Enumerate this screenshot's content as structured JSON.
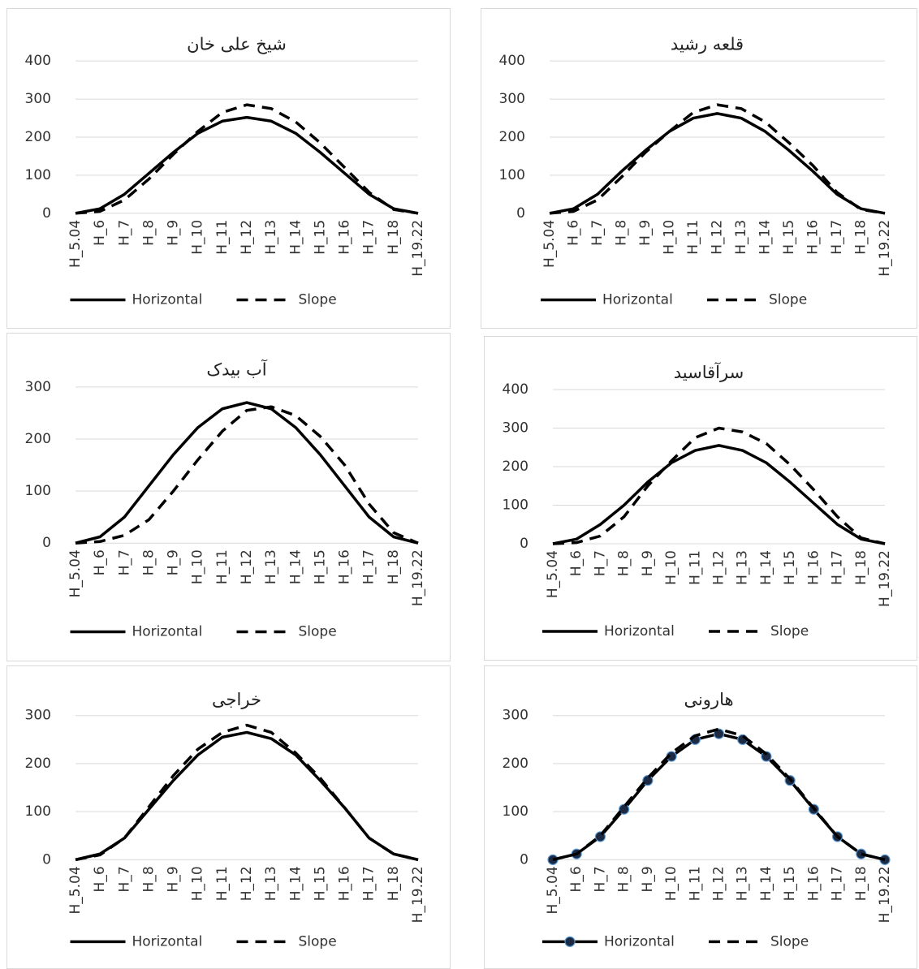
{
  "chart_data": [
    {
      "type": "line",
      "title": "شیخ علی خان",
      "categories": [
        "H_5.04",
        "H_6",
        "H_7",
        "H_8",
        "H_9",
        "H_10",
        "H_11",
        "H_12",
        "H_13",
        "H_14",
        "H_15",
        "H_16",
        "H_17",
        "H_18",
        "H_19.22"
      ],
      "series": [
        {
          "name": "Horizontal",
          "color": "#000000",
          "line_style": "solid",
          "values": [
            0,
            12,
            50,
            105,
            160,
            210,
            242,
            252,
            242,
            210,
            160,
            105,
            50,
            12,
            0
          ]
        },
        {
          "name": "Slope",
          "color": "#000000",
          "line_style": "dashed",
          "values": [
            0,
            5,
            35,
            90,
            155,
            215,
            265,
            285,
            275,
            240,
            185,
            120,
            55,
            10,
            0
          ]
        }
      ],
      "ylim": [
        0,
        400
      ],
      "yticks": [
        0,
        100,
        200,
        300,
        400
      ],
      "grid": true,
      "legend": "bottom"
    },
    {
      "type": "line",
      "title": "قلعه رشید",
      "categories": [
        "H_5.04",
        "H_6",
        "H_7",
        "H_8",
        "H_9",
        "H_10",
        "H_11",
        "H_12",
        "H_13",
        "H_14",
        "H_15",
        "H_16",
        "H_17",
        "H_18",
        "H_19.22"
      ],
      "series": [
        {
          "name": "Horizontal",
          "color": "#000000",
          "line_style": "solid",
          "values": [
            0,
            12,
            50,
            110,
            165,
            215,
            250,
            262,
            250,
            215,
            165,
            110,
            50,
            12,
            0
          ]
        },
        {
          "name": "Slope",
          "color": "#000000",
          "line_style": "dashed",
          "values": [
            0,
            5,
            35,
            95,
            160,
            215,
            265,
            285,
            275,
            240,
            185,
            125,
            55,
            10,
            0
          ]
        }
      ],
      "ylim": [
        0,
        400
      ],
      "yticks": [
        0,
        100,
        200,
        300,
        400
      ],
      "grid": true,
      "legend": "bottom"
    },
    {
      "type": "line",
      "title": "آب بیدک",
      "categories": [
        "H_5.04",
        "H_6",
        "H_7",
        "H_8",
        "H_9",
        "H_10",
        "H_11",
        "H_12",
        "H_13",
        "H_14",
        "H_15",
        "H_16",
        "H_17",
        "H_18",
        "H_19.22"
      ],
      "series": [
        {
          "name": "Horizontal",
          "color": "#000000",
          "line_style": "solid",
          "values": [
            0,
            12,
            50,
            110,
            170,
            222,
            258,
            270,
            258,
            222,
            170,
            110,
            50,
            12,
            0
          ]
        },
        {
          "name": "Slope",
          "color": "#000000",
          "line_style": "dashed",
          "values": [
            0,
            3,
            15,
            45,
            100,
            160,
            215,
            255,
            262,
            245,
            205,
            150,
            75,
            20,
            0
          ]
        }
      ],
      "ylim": [
        0,
        300
      ],
      "yticks": [
        0,
        100,
        200,
        300
      ],
      "grid": true,
      "legend": "bottom"
    },
    {
      "type": "line",
      "title": "سرآقاسید",
      "categories": [
        "H_5.04",
        "H_6",
        "H_7",
        "H_8",
        "H_9",
        "H_10",
        "H_11",
        "H_12",
        "H_13",
        "H_14",
        "H_15",
        "H_16",
        "H_17",
        "H_18",
        "H_19.22"
      ],
      "series": [
        {
          "name": "Horizontal",
          "color": "#000000",
          "line_style": "solid",
          "values": [
            0,
            12,
            50,
            100,
            160,
            210,
            242,
            255,
            242,
            210,
            160,
            105,
            50,
            12,
            0
          ]
        },
        {
          "name": "Slope",
          "color": "#000000",
          "line_style": "dashed",
          "values": [
            0,
            3,
            20,
            70,
            150,
            215,
            275,
            300,
            290,
            260,
            205,
            140,
            70,
            15,
            0
          ]
        }
      ],
      "ylim": [
        0,
        400
      ],
      "yticks": [
        0,
        100,
        200,
        300,
        400
      ],
      "grid": true,
      "legend": "bottom"
    },
    {
      "type": "line",
      "title": "خراجی",
      "categories": [
        "H_5.04",
        "H_6",
        "H_7",
        "H_8",
        "H_9",
        "H_10",
        "H_11",
        "H_12",
        "H_13",
        "H_14",
        "H_15",
        "H_16",
        "H_17",
        "H_18",
        "H_19.22"
      ],
      "series": [
        {
          "name": "Horizontal",
          "color": "#000000",
          "line_style": "solid",
          "values": [
            0,
            12,
            45,
            105,
            165,
            218,
            255,
            265,
            252,
            218,
            165,
            108,
            45,
            12,
            0
          ]
        },
        {
          "name": "Slope",
          "color": "#000000",
          "line_style": "dashed",
          "values": [
            0,
            10,
            45,
            110,
            175,
            230,
            265,
            280,
            265,
            222,
            170,
            108,
            45,
            12,
            0
          ]
        }
      ],
      "ylim": [
        0,
        300
      ],
      "yticks": [
        0,
        100,
        200,
        300
      ],
      "grid": true,
      "legend": "bottom"
    },
    {
      "type": "line",
      "title": "هارونی",
      "categories": [
        "H_5.04",
        "H_6",
        "H_7",
        "H_8",
        "H_9",
        "H_10",
        "H_11",
        "H_12",
        "H_13",
        "H_14",
        "H_15",
        "H_16",
        "H_17",
        "H_18",
        "H_19.22"
      ],
      "series": [
        {
          "name": "Horizontal",
          "color": "#000000",
          "line_style": "solid",
          "marker": "circle",
          "values": [
            0,
            12,
            48,
            105,
            165,
            215,
            250,
            262,
            250,
            215,
            165,
            105,
            48,
            12,
            0
          ]
        },
        {
          "name": "Slope",
          "color": "#000000",
          "line_style": "dashed",
          "values": [
            0,
            12,
            50,
            110,
            170,
            222,
            258,
            272,
            258,
            220,
            168,
            107,
            48,
            12,
            0
          ]
        }
      ],
      "ylim": [
        0,
        300
      ],
      "yticks": [
        0,
        100,
        200,
        300
      ],
      "grid": true,
      "legend": "bottom"
    }
  ]
}
